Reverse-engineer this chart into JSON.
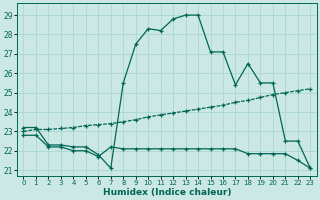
{
  "xlabel": "Humidex (Indice chaleur)",
  "bg_color": "#cce8e4",
  "grid_color": "#aad8d0",
  "line_color": "#006655",
  "xlim": [
    -0.5,
    23.5
  ],
  "ylim": [
    20.7,
    29.6
  ],
  "xticks": [
    0,
    1,
    2,
    3,
    4,
    5,
    6,
    7,
    8,
    9,
    10,
    11,
    12,
    13,
    14,
    15,
    16,
    17,
    18,
    19,
    20,
    21,
    22,
    23
  ],
  "yticks": [
    21,
    22,
    23,
    24,
    25,
    26,
    27,
    28,
    29
  ],
  "line1_y": [
    23.2,
    23.2,
    22.3,
    22.3,
    22.2,
    22.2,
    21.8,
    21.1,
    25.5,
    27.5,
    28.3,
    28.2,
    28.8,
    29.0,
    29.0,
    27.1,
    27.1,
    25.4,
    26.5,
    25.5,
    25.5,
    22.5,
    22.5,
    21.1
  ],
  "line2_y": [
    22.8,
    22.8,
    22.2,
    22.2,
    22.0,
    22.0,
    21.7,
    22.2,
    22.1,
    22.1,
    22.1,
    22.1,
    22.1,
    22.1,
    22.1,
    22.1,
    22.1,
    22.1,
    21.85,
    21.85,
    21.85,
    21.85,
    21.5,
    21.1
  ],
  "line3_y": [
    23.0,
    23.1,
    23.1,
    23.15,
    23.2,
    23.3,
    23.35,
    23.4,
    23.5,
    23.6,
    23.75,
    23.85,
    23.95,
    24.05,
    24.15,
    24.25,
    24.35,
    24.5,
    24.6,
    24.75,
    24.9,
    25.0,
    25.1,
    25.2
  ]
}
